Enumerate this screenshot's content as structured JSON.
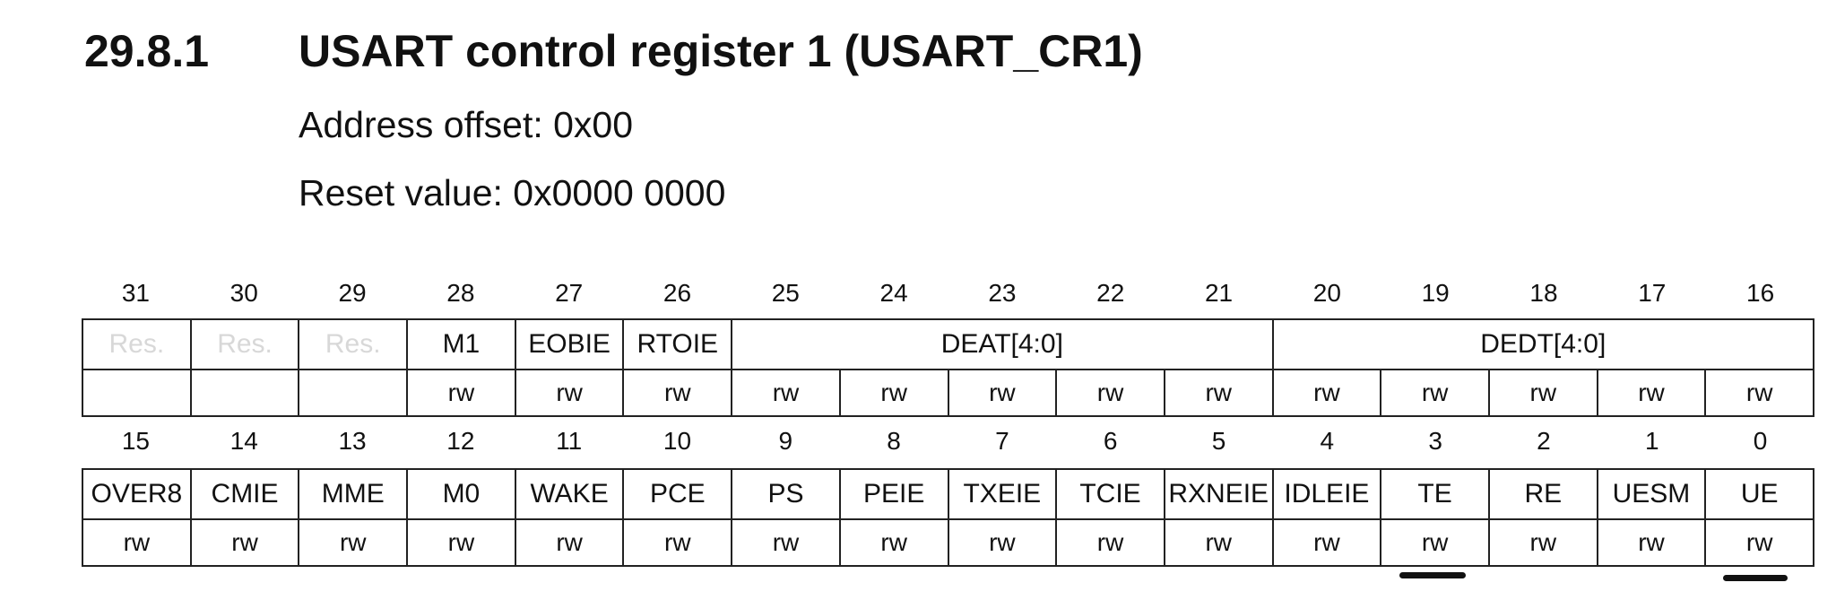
{
  "section": {
    "number": "29.8.1",
    "title": "USART control register 1 (USART_CR1)",
    "address_offset": "Address offset: 0x00",
    "reset_value": "Reset value: 0x0000 0000"
  },
  "register": {
    "upper": {
      "bits": [
        "31",
        "30",
        "29",
        "28",
        "27",
        "26",
        "25",
        "24",
        "23",
        "22",
        "21",
        "20",
        "19",
        "18",
        "17",
        "16"
      ],
      "fields": [
        {
          "name": "Res.",
          "span": 1,
          "reserved": true
        },
        {
          "name": "Res.",
          "span": 1,
          "reserved": true
        },
        {
          "name": "Res.",
          "span": 1,
          "reserved": true
        },
        {
          "name": "M1",
          "span": 1
        },
        {
          "name": "EOBIE",
          "span": 1
        },
        {
          "name": "RTOIE",
          "span": 1
        },
        {
          "name": "DEAT[4:0]",
          "span": 5
        },
        {
          "name": "DEDT[4:0]",
          "span": 5
        }
      ],
      "access": [
        "",
        "",
        "",
        "rw",
        "rw",
        "rw",
        "rw",
        "rw",
        "rw",
        "rw",
        "rw",
        "rw",
        "rw",
        "rw",
        "rw",
        "rw"
      ]
    },
    "lower": {
      "bits": [
        "15",
        "14",
        "13",
        "12",
        "11",
        "10",
        "9",
        "8",
        "7",
        "6",
        "5",
        "4",
        "3",
        "2",
        "1",
        "0"
      ],
      "fields": [
        {
          "name": "OVER8",
          "span": 1
        },
        {
          "name": "CMIE",
          "span": 1
        },
        {
          "name": "MME",
          "span": 1
        },
        {
          "name": "M0",
          "span": 1
        },
        {
          "name": "WAKE",
          "span": 1
        },
        {
          "name": "PCE",
          "span": 1
        },
        {
          "name": "PS",
          "span": 1
        },
        {
          "name": "PEIE",
          "span": 1
        },
        {
          "name": "TXEIE",
          "span": 1
        },
        {
          "name": "TCIE",
          "span": 1
        },
        {
          "name": "RXNEIE",
          "span": 1
        },
        {
          "name": "IDLEIE",
          "span": 1
        },
        {
          "name": "TE",
          "span": 1
        },
        {
          "name": "RE",
          "span": 1
        },
        {
          "name": "UESM",
          "span": 1
        },
        {
          "name": "UE",
          "span": 1
        }
      ],
      "access": [
        "rw",
        "rw",
        "rw",
        "rw",
        "rw",
        "rw",
        "rw",
        "rw",
        "rw",
        "rw",
        "rw",
        "rw",
        "rw",
        "rw",
        "rw",
        "rw"
      ]
    }
  },
  "annotations": {
    "underlined_bits": [
      "3",
      "0"
    ]
  }
}
